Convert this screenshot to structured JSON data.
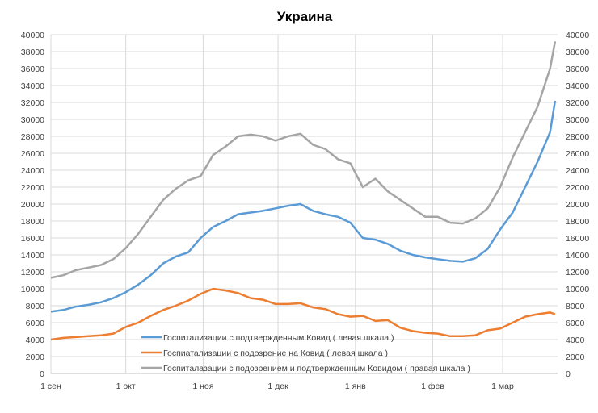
{
  "chart_data": {
    "type": "line",
    "title": "Украина",
    "x_ticks": [
      {
        "date": "09-01",
        "label": "1 сен"
      },
      {
        "date": "10-01",
        "label": "1 окт"
      },
      {
        "date": "11-01",
        "label": "1 ноя"
      },
      {
        "date": "12-01",
        "label": "1 дек"
      },
      {
        "date": "01-01",
        "label": "1 янв"
      },
      {
        "date": "02-01",
        "label": "1 фев"
      },
      {
        "date": "03-01",
        "label": "1 мар"
      }
    ],
    "y_left": {
      "min": 0,
      "max": 40000,
      "step": 2000
    },
    "y_right": {
      "min": 0,
      "max": 40000,
      "step": 2000
    },
    "grid": true,
    "legend_position": "bottom-center inside plot",
    "x": [
      "09-01",
      "09-06",
      "09-11",
      "09-16",
      "09-21",
      "09-26",
      "10-01",
      "10-06",
      "10-11",
      "10-16",
      "10-21",
      "10-26",
      "10-31",
      "11-05",
      "11-10",
      "11-15",
      "11-20",
      "11-25",
      "11-30",
      "12-05",
      "12-10",
      "12-15",
      "12-20",
      "12-25",
      "12-30",
      "01-04",
      "01-09",
      "01-14",
      "01-19",
      "01-24",
      "01-29",
      "02-03",
      "02-08",
      "02-13",
      "02-18",
      "02-23",
      "02-28",
      "03-05",
      "03-10",
      "03-15",
      "03-20",
      "03-22"
    ],
    "series": [
      {
        "name": "Госпитализации с подтвержденным Ковид ( левая шкала )",
        "axis": "left",
        "color": "#5B9BD5",
        "values": [
          7300,
          7500,
          7900,
          8100,
          8400,
          8900,
          9600,
          10500,
          11600,
          13000,
          13800,
          14300,
          16000,
          17300,
          18000,
          18800,
          19000,
          19200,
          19500,
          19800,
          20000,
          19200,
          18800,
          18500,
          17800,
          16000,
          15800,
          15300,
          14500,
          14000,
          13700,
          13500,
          13300,
          13200,
          13600,
          14700,
          17000,
          19000,
          22000,
          25000,
          28500,
          32200
        ]
      },
      {
        "name": "Госпиатализации с подозрение на Ковид ( левая шкала )",
        "axis": "left",
        "color": "#ED7D31",
        "values": [
          4000,
          4200,
          4300,
          4400,
          4500,
          4700,
          5500,
          6000,
          6800,
          7500,
          8000,
          8600,
          9400,
          10000,
          9800,
          9500,
          8900,
          8700,
          8200,
          8200,
          8300,
          7800,
          7600,
          7000,
          6700,
          6800,
          6200,
          6300,
          5400,
          5000,
          4800,
          4700,
          4400,
          4400,
          4500,
          5100,
          5300,
          6000,
          6700,
          7000,
          7200,
          7000
        ]
      },
      {
        "name": "Госпиталазации с подозрением и подтвержденным Ковидом ( правая шкала )",
        "axis": "right",
        "color": "#A5A5A5",
        "values": [
          11300,
          11600,
          12200,
          12500,
          12800,
          13500,
          14800,
          16500,
          18500,
          20500,
          21800,
          22800,
          23300,
          25800,
          26800,
          28000,
          28200,
          28000,
          27500,
          28000,
          28300,
          27000,
          26500,
          25300,
          24800,
          22000,
          23000,
          21500,
          20500,
          19500,
          18500,
          18500,
          17800,
          17700,
          18300,
          19500,
          22000,
          25500,
          28500,
          31500,
          36000,
          39200
        ]
      }
    ]
  }
}
